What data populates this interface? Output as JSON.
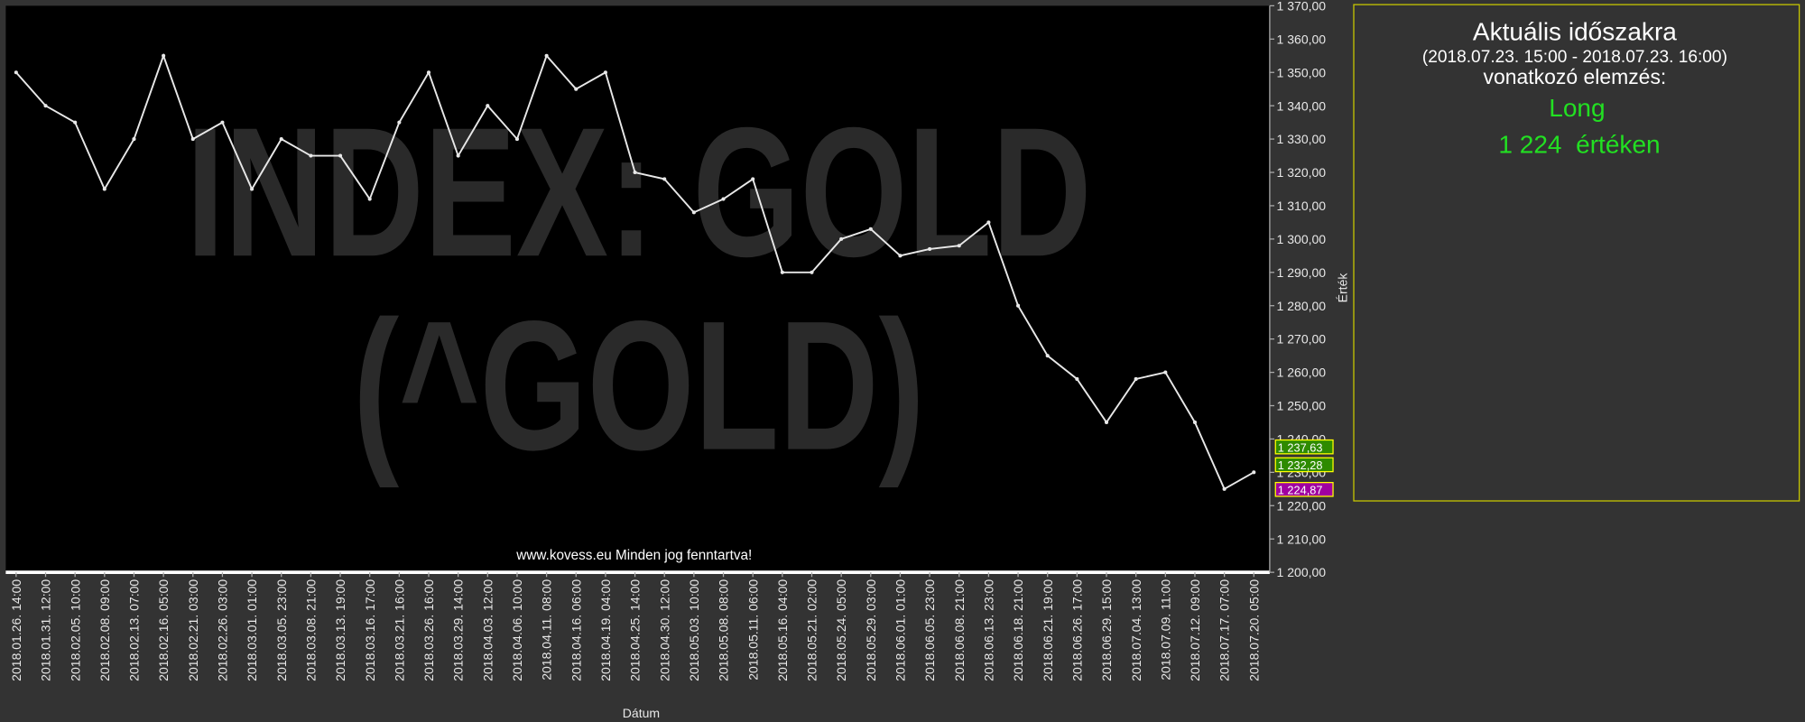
{
  "chart_data": {
    "type": "line",
    "watermark": [
      "INDEX: GOLD",
      "(^GOLD)"
    ],
    "footer": "www.kovess.eu Minden jog fenntartva!",
    "x_label": "Dátum",
    "y_label": "Érték",
    "categories": [
      "2018.01.26. 14:00",
      "2018.01.31. 12:00",
      "2018.02.05. 10:00",
      "2018.02.08. 09:00",
      "2018.02.13. 07:00",
      "2018.02.16. 05:00",
      "2018.02.21. 03:00",
      "2018.02.26. 03:00",
      "2018.03.01. 01:00",
      "2018.03.05. 23:00",
      "2018.03.08. 21:00",
      "2018.03.13. 19:00",
      "2018.03.16. 17:00",
      "2018.03.21. 16:00",
      "2018.03.26. 16:00",
      "2018.03.29. 14:00",
      "2018.04.03. 12:00",
      "2018.04.06. 10:00",
      "2018.04.11. 08:00",
      "2018.04.16. 06:00",
      "2018.04.19. 04:00",
      "2018.04.25. 14:00",
      "2018.04.30. 12:00",
      "2018.05.03. 10:00",
      "2018.05.08. 08:00",
      "2018.05.11. 06:00",
      "2018.05.16. 04:00",
      "2018.05.21. 02:00",
      "2018.05.24. 05:00",
      "2018.05.29. 03:00",
      "2018.06.01. 01:00",
      "2018.06.05. 23:00",
      "2018.06.08. 21:00",
      "2018.06.13. 23:00",
      "2018.06.18. 21:00",
      "2018.06.21. 19:00",
      "2018.06.26. 17:00",
      "2018.06.29. 15:00",
      "2018.07.04. 13:00",
      "2018.07.09. 11:00",
      "2018.07.12. 09:00",
      "2018.07.17. 07:00",
      "2018.07.20. 05:00"
    ],
    "series": [
      {
        "color": "#e8e8e8",
        "values": [
          1350,
          1340,
          1335,
          1315,
          1330,
          1355,
          1330,
          1335,
          1315,
          1330,
          1325,
          1325,
          1312,
          1335,
          1350,
          1325,
          1340,
          1330,
          1355,
          1345,
          1350,
          1320,
          1318,
          1308,
          1312,
          1318,
          1290,
          1290,
          1300,
          1303,
          1295,
          1297,
          1298,
          1305,
          1280,
          1265,
          1258,
          1245,
          1258,
          1260,
          1245,
          1225,
          1230
        ]
      }
    ],
    "ylim": [
      1200,
      1370
    ],
    "yticks": [
      {
        "value": 1200,
        "label": "1 200,00"
      },
      {
        "value": 1210,
        "label": "1 210,00"
      },
      {
        "value": 1220,
        "label": "1 220,00"
      },
      {
        "value": 1230,
        "label": "1 230,00"
      },
      {
        "value": 1240,
        "label": "1 240,00"
      },
      {
        "value": 1250,
        "label": "1 250,00"
      },
      {
        "value": 1260,
        "label": "1 260,00"
      },
      {
        "value": 1270,
        "label": "1 270,00"
      },
      {
        "value": 1280,
        "label": "1 280,00"
      },
      {
        "value": 1290,
        "label": "1 290,00"
      },
      {
        "value": 1300,
        "label": "1 300,00"
      },
      {
        "value": 1310,
        "label": "1 310,00"
      },
      {
        "value": 1320,
        "label": "1 320,00"
      },
      {
        "value": 1330,
        "label": "1 330,00"
      },
      {
        "value": 1340,
        "label": "1 340,00"
      },
      {
        "value": 1350,
        "label": "1 350,00"
      },
      {
        "value": 1360,
        "label": "1 360,00"
      },
      {
        "value": 1370,
        "label": "1 370,00"
      }
    ],
    "price_tags": [
      {
        "value": 1237.63,
        "label": "1 237,63",
        "color": "#2e8b00"
      },
      {
        "value": 1232.28,
        "label": "1 232,28",
        "color": "#2e8b00"
      },
      {
        "value": 1224.87,
        "label": "1 224,87",
        "color": "#a000a0"
      }
    ]
  },
  "panel": {
    "title": "Aktuális időszakra",
    "period": "(2018.07.23. 15:00 - 2018.07.23. 16:00)",
    "subtitle": "vonatkozó elemzés:",
    "signal": "Long",
    "level": "1 224  értéken"
  }
}
